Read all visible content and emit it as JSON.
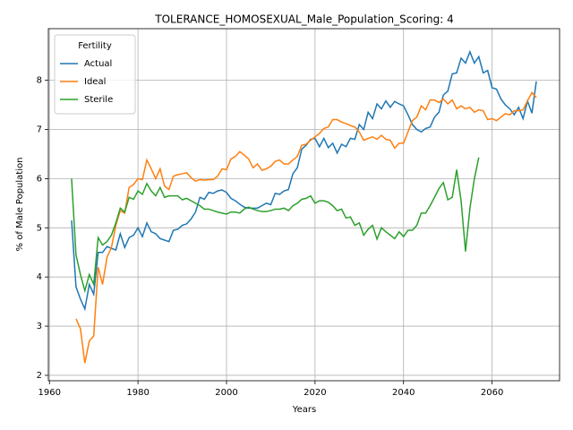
{
  "chart_data": {
    "type": "line",
    "title": "TOLERANCE_HOMOSEXUAL_Male_Population_Scoring: 4",
    "x_label": "Years",
    "y_label": "% of Male Population",
    "legend_title": "Fertility",
    "legend_position": "upper left",
    "grid": true,
    "x": [
      1965,
      1966,
      1967,
      1968,
      1969,
      1970,
      1971,
      1972,
      1973,
      1974,
      1975,
      1976,
      1977,
      1978,
      1979,
      1980,
      1981,
      1982,
      1983,
      1984,
      1985,
      1986,
      1987,
      1988,
      1989,
      1990,
      1991,
      1992,
      1993,
      1994,
      1995,
      1996,
      1997,
      1998,
      1999,
      2000,
      2001,
      2002,
      2003,
      2004,
      2005,
      2006,
      2007,
      2008,
      2009,
      2010,
      2011,
      2012,
      2013,
      2014,
      2015,
      2016,
      2017,
      2018,
      2019,
      2020,
      2021,
      2022,
      2023,
      2024,
      2025,
      2026,
      2027,
      2028,
      2029,
      2030,
      2031,
      2032,
      2033,
      2034,
      2035,
      2036,
      2037,
      2038,
      2039,
      2040,
      2041,
      2042,
      2043,
      2044,
      2045,
      2046,
      2047,
      2048,
      2049,
      2050,
      2051,
      2052,
      2053,
      2054,
      2055,
      2056,
      2057,
      2058,
      2059,
      2060,
      2061,
      2062,
      2063,
      2064,
      2065,
      2066,
      2067,
      2068,
      2069,
      2070
    ],
    "series": [
      {
        "name": "Actual",
        "color": "#1f77b4",
        "values": [
          5.15,
          3.8,
          3.55,
          3.35,
          3.85,
          3.65,
          4.5,
          4.5,
          4.62,
          4.58,
          4.55,
          4.88,
          4.6,
          4.8,
          4.85,
          5.0,
          4.82,
          5.1,
          4.92,
          4.88,
          4.78,
          4.75,
          4.72,
          4.95,
          4.97,
          5.05,
          5.08,
          5.18,
          5.32,
          5.62,
          5.58,
          5.72,
          5.7,
          5.75,
          5.77,
          5.72,
          5.6,
          5.55,
          5.48,
          5.42,
          5.4,
          5.4,
          5.4,
          5.45,
          5.5,
          5.47,
          5.7,
          5.68,
          5.75,
          5.78,
          6.1,
          6.22,
          6.6,
          6.68,
          6.8,
          6.82,
          6.65,
          6.82,
          6.63,
          6.72,
          6.52,
          6.7,
          6.65,
          6.82,
          6.8,
          7.1,
          7.0,
          7.35,
          7.22,
          7.52,
          7.42,
          7.58,
          7.45,
          7.57,
          7.52,
          7.48,
          7.3,
          7.1,
          7.0,
          6.95,
          7.02,
          7.05,
          7.25,
          7.35,
          7.7,
          7.78,
          8.13,
          8.15,
          8.45,
          8.35,
          8.58,
          8.35,
          8.48,
          8.15,
          8.2,
          7.85,
          7.82,
          7.62,
          7.5,
          7.42,
          7.3,
          7.45,
          7.22,
          7.58,
          7.33,
          7.98
        ]
      },
      {
        "name": "Ideal",
        "color": "#ff7f0e",
        "values": [
          null,
          3.15,
          2.95,
          2.25,
          2.7,
          2.8,
          4.2,
          3.85,
          4.4,
          4.6,
          5.05,
          5.35,
          5.3,
          5.82,
          5.88,
          6.0,
          5.98,
          6.38,
          6.2,
          6.0,
          6.2,
          5.85,
          5.78,
          6.05,
          6.08,
          6.1,
          6.12,
          6.02,
          5.95,
          5.98,
          5.97,
          5.98,
          5.98,
          6.05,
          6.2,
          6.18,
          6.4,
          6.45,
          6.55,
          6.48,
          6.4,
          6.22,
          6.3,
          6.17,
          6.2,
          6.25,
          6.35,
          6.38,
          6.3,
          6.3,
          6.38,
          6.45,
          6.68,
          6.7,
          6.78,
          6.85,
          6.92,
          7.02,
          7.05,
          7.2,
          7.2,
          7.15,
          7.12,
          7.08,
          7.05,
          6.95,
          6.78,
          6.82,
          6.85,
          6.8,
          6.88,
          6.8,
          6.78,
          6.62,
          6.72,
          6.72,
          6.95,
          7.18,
          7.25,
          7.48,
          7.4,
          7.6,
          7.6,
          7.55,
          7.62,
          7.52,
          7.6,
          7.42,
          7.48,
          7.42,
          7.45,
          7.35,
          7.4,
          7.38,
          7.2,
          7.22,
          7.18,
          7.25,
          7.32,
          7.3,
          7.38,
          7.38,
          7.4,
          7.58,
          7.75,
          7.65
        ]
      },
      {
        "name": "Sterile",
        "color": "#2ca02c",
        "values": [
          6.0,
          4.45,
          4.05,
          3.72,
          4.05,
          3.85,
          4.8,
          4.65,
          4.72,
          4.85,
          5.1,
          5.4,
          5.32,
          5.62,
          5.58,
          5.75,
          5.68,
          5.9,
          5.75,
          5.65,
          5.82,
          5.62,
          5.65,
          5.65,
          5.65,
          5.57,
          5.6,
          5.55,
          5.5,
          5.45,
          5.38,
          5.38,
          5.35,
          5.32,
          5.3,
          5.28,
          5.32,
          5.32,
          5.3,
          5.38,
          5.42,
          5.38,
          5.35,
          5.33,
          5.33,
          5.35,
          5.38,
          5.38,
          5.4,
          5.35,
          5.45,
          5.5,
          5.58,
          5.6,
          5.65,
          5.5,
          5.55,
          5.55,
          5.52,
          5.45,
          5.35,
          5.38,
          5.2,
          5.22,
          5.05,
          5.1,
          4.85,
          4.97,
          5.05,
          4.77,
          5.0,
          4.92,
          4.85,
          4.78,
          4.92,
          4.82,
          4.95,
          4.95,
          5.05,
          5.3,
          5.3,
          5.45,
          5.62,
          5.8,
          5.92,
          5.57,
          5.62,
          6.18,
          5.55,
          4.52,
          5.4,
          6.0,
          6.43,
          null,
          null,
          null,
          null,
          null,
          null,
          null,
          null,
          null,
          null,
          null,
          null,
          null
        ]
      }
    ],
    "xlim": [
      1959.75,
      2075.25
    ],
    "xticks": [
      1960,
      1980,
      2000,
      2020,
      2040,
      2060
    ],
    "ylim": [
      1.89,
      9.05
    ],
    "yticks": [
      2,
      3,
      4,
      5,
      6,
      7,
      8
    ]
  }
}
